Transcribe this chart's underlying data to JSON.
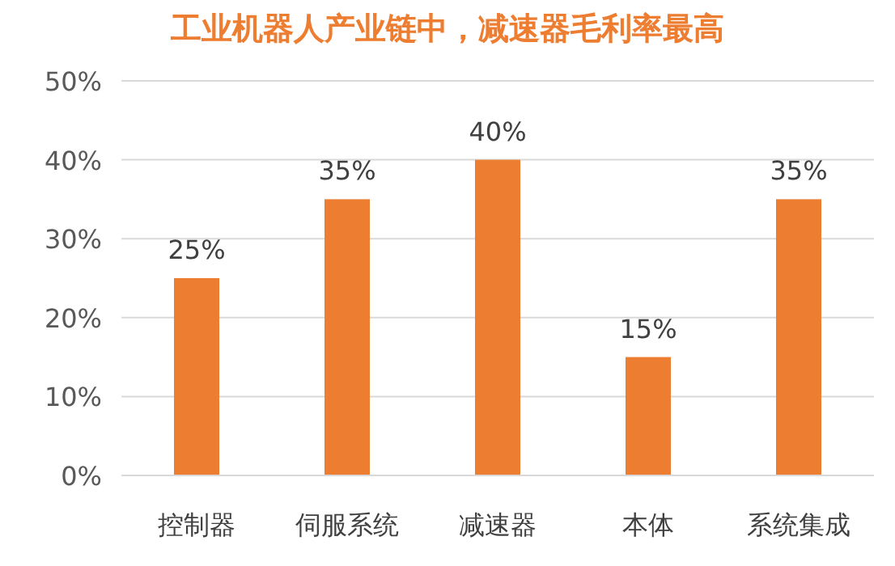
{
  "chart_data": {
    "type": "bar",
    "title": "工业机器人产业链中，减速器毛利率最高",
    "categories": [
      "控制器",
      "伺服系统",
      "减速器",
      "本体",
      "系统集成"
    ],
    "values": [
      25,
      35,
      40,
      15,
      35
    ],
    "color": "#ed7d31",
    "value_labels": [
      "25%",
      "35%",
      "40%",
      "15%",
      "35%"
    ],
    "ylim": [
      0,
      50
    ],
    "yticks": [
      {
        "value": 0,
        "label": "0%"
      },
      {
        "value": 10,
        "label": "10%"
      },
      {
        "value": 20,
        "label": "20%"
      },
      {
        "value": 30,
        "label": "30%"
      },
      {
        "value": 40,
        "label": "40%"
      },
      {
        "value": 50,
        "label": "50%"
      }
    ],
    "grid": "y"
  }
}
